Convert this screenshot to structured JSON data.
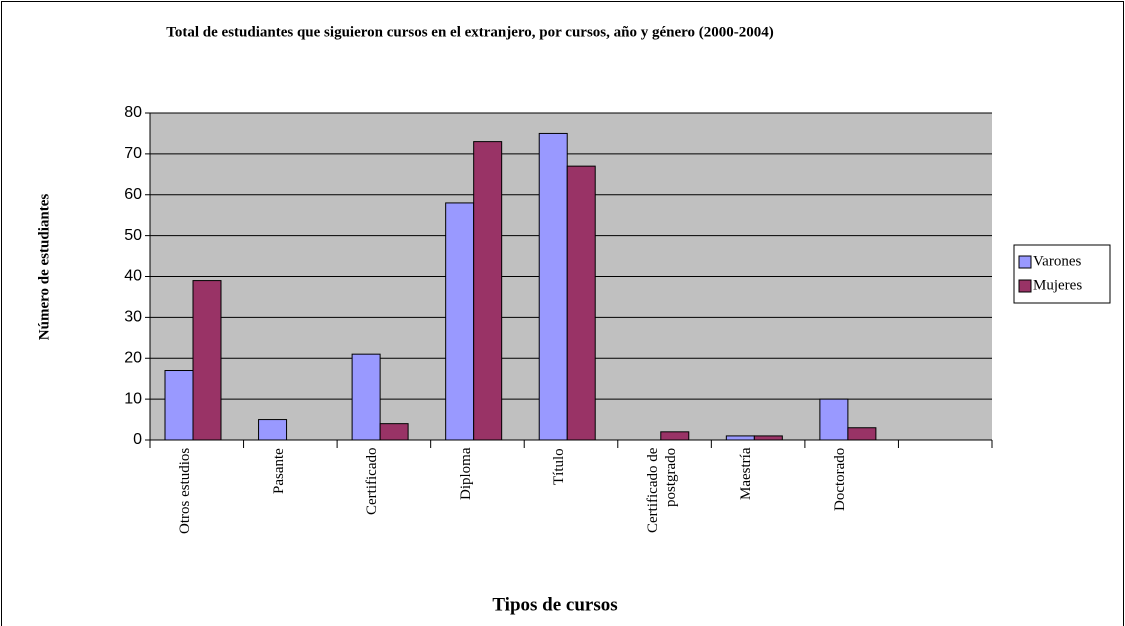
{
  "chart_data": {
    "type": "bar",
    "title": "Total de estudiantes que siguieron cursos en el extranjero, por cursos, año y género (2000-2004)",
    "xlabel": "Tipos de cursos",
    "ylabel": "Número de estudiantes",
    "categories": [
      "Otros estudios",
      "Pasante",
      "Certificado",
      "Diploma",
      "Título",
      "Certificado de postgrado",
      "Maestría",
      "Doctorado",
      null
    ],
    "series": [
      {
        "name": "Varones",
        "color": "#9999ff",
        "values": [
          17,
          5,
          21,
          58,
          75,
          null,
          1,
          10,
          null
        ]
      },
      {
        "name": "Mujeres",
        "color": "#993366",
        "values": [
          39,
          null,
          4,
          73,
          67,
          2,
          1,
          3,
          null
        ]
      }
    ],
    "ylim": [
      0,
      80
    ],
    "yticks": [
      0,
      10,
      20,
      30,
      40,
      50,
      60,
      70,
      80
    ],
    "grid": true,
    "legend": "right"
  }
}
